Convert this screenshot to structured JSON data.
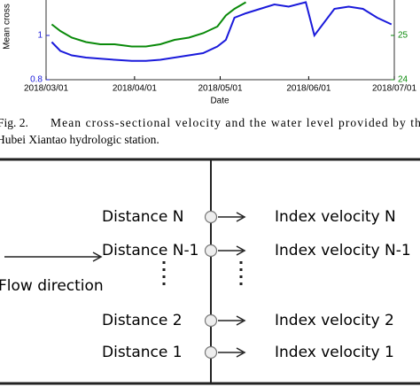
{
  "chart_data": {
    "type": "line",
    "y_label": "Mean cross",
    "x_label": "Date",
    "x": [
      "2018/03/03",
      "2018/03/06",
      "2018/03/10",
      "2018/03/15",
      "2018/03/20",
      "2018/03/25",
      "2018/03/31",
      "2018/04/05",
      "2018/04/10",
      "2018/04/15",
      "2018/04/20",
      "2018/04/25",
      "2018/04/30",
      "2018/05/03",
      "2018/05/06",
      "2018/05/10",
      "2018/05/15",
      "2018/05/20",
      "2018/05/25",
      "2018/05/31",
      "2018/06/03",
      "2018/06/10",
      "2018/06/15",
      "2018/06/20",
      "2018/06/25",
      "2018/06/30"
    ],
    "series": [
      {
        "name": "Mean cross-sectional velocity",
        "color": "#1a1adb",
        "values": [
          0.97,
          0.93,
          0.91,
          0.9,
          0.895,
          0.89,
          0.885,
          0.885,
          0.89,
          0.9,
          0.91,
          0.92,
          0.95,
          0.98,
          1.08,
          1.1,
          1.12,
          1.14,
          1.13,
          1.15,
          1.0,
          1.12,
          1.13,
          1.12,
          1.08,
          1.05
        ]
      },
      {
        "name": "Water level",
        "color": "#0a8a0a",
        "axis": "y2",
        "values": [
          25.25,
          25.1,
          24.95,
          24.85,
          24.8,
          24.8,
          24.75,
          24.75,
          24.8,
          24.9,
          24.95,
          25.05,
          25.2,
          25.45,
          25.6,
          25.75,
          null,
          null,
          null,
          null,
          null,
          null,
          null,
          null,
          null,
          null
        ]
      }
    ],
    "xlim": [
      "2018/03/01",
      "2018/07/01"
    ],
    "xticks": [
      "2018/03/01",
      "2018/04/01",
      "2018/05/01",
      "2018/06/01",
      "2018/07/01"
    ],
    "ylim": [
      0.8,
      1.16
    ],
    "yticks": [
      0.8,
      1
    ],
    "y2lim": [
      24,
      25.8
    ],
    "y2ticks": [
      24,
      25
    ]
  },
  "caption": {
    "label": "Fig. 2.",
    "line1": "Mean cross-sectional velocity and the water level provided by the",
    "line2": "Hubei Xiantao hydrologic station."
  },
  "diagram": {
    "flow_label": "Flow direction",
    "rows": [
      {
        "distance": "Distance N",
        "velocity": "Index velocity N"
      },
      {
        "distance": "Distance N-1",
        "velocity": "Index velocity N-1"
      },
      {
        "distance": "Distance 2",
        "velocity": "Index velocity 2"
      },
      {
        "distance": "Distance 1",
        "velocity": "Index velocity 1"
      }
    ]
  }
}
